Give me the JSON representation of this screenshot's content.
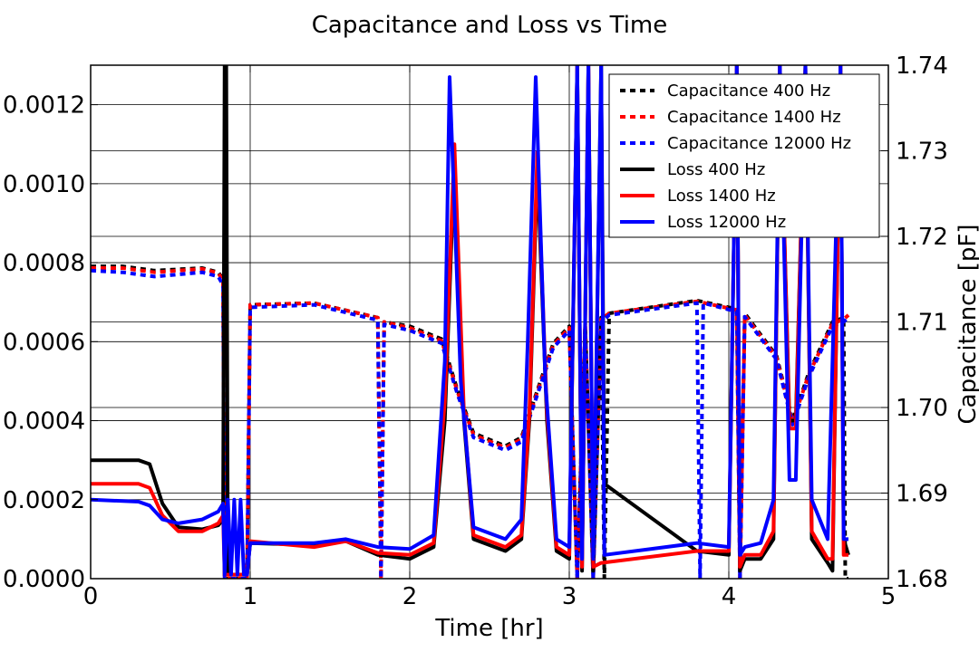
{
  "chart_data": {
    "type": "line",
    "title": "Capacitance and Loss vs Time",
    "xlabel": "Time [hr]",
    "ylabel_left": "",
    "ylabel_right": "Capacitance [pF]",
    "xlim": [
      0,
      5
    ],
    "ylim_left": [
      0,
      0.0013
    ],
    "ylim_right": [
      1.68,
      1.74
    ],
    "xticks": [
      "0",
      "1",
      "2",
      "3",
      "4",
      "5"
    ],
    "yticks_left": [
      "0.0000",
      "0.0002",
      "0.0004",
      "0.0006",
      "0.0008",
      "0.0010",
      "0.0012"
    ],
    "yticks_right": [
      "1.68",
      "1.69",
      "1.70",
      "1.71",
      "1.72",
      "1.73",
      "1.74"
    ],
    "grid": true,
    "legend_position": "top-right",
    "series": [
      {
        "name": "Capacitance 400 Hz",
        "axis": "right",
        "style": "dashed",
        "color": "#000000",
        "points": [
          [
            0,
            1.7165
          ],
          [
            0.2,
            1.7165
          ],
          [
            0.4,
            1.716
          ],
          [
            0.7,
            1.7163
          ],
          [
            0.8,
            1.7158
          ],
          [
            0.83,
            1.715
          ],
          [
            0.84,
            1.68
          ],
          [
            0.98,
            1.68
          ],
          [
            1.0,
            1.712
          ],
          [
            1.4,
            1.7122
          ],
          [
            1.8,
            1.7105
          ],
          [
            1.82,
            1.68
          ],
          [
            1.84,
            1.71
          ],
          [
            2.0,
            1.7095
          ],
          [
            2.2,
            1.708
          ],
          [
            2.3,
            1.702
          ],
          [
            2.4,
            1.697
          ],
          [
            2.6,
            1.6955
          ],
          [
            2.7,
            1.6965
          ],
          [
            2.8,
            1.702
          ],
          [
            2.9,
            1.7075
          ],
          [
            3.0,
            1.7095
          ],
          [
            3.05,
            1.68
          ],
          [
            3.1,
            1.71
          ],
          [
            3.15,
            1.68
          ],
          [
            3.2,
            1.7105
          ],
          [
            3.22,
            1.68
          ],
          [
            3.25,
            1.711
          ],
          [
            3.8,
            1.7125
          ],
          [
            4.05,
            1.7115
          ],
          [
            4.07,
            1.68
          ],
          [
            4.1,
            1.711
          ],
          [
            4.3,
            1.706
          ],
          [
            4.4,
            1.6985
          ],
          [
            4.5,
            1.704
          ],
          [
            4.65,
            1.71
          ],
          [
            4.72,
            1.7105
          ],
          [
            4.73,
            1.68
          ],
          [
            4.75,
            1.68
          ]
        ]
      },
      {
        "name": "Capacitance 1400 Hz",
        "axis": "right",
        "style": "dashed",
        "color": "#ff0000",
        "points": [
          [
            0,
            1.7163
          ],
          [
            0.2,
            1.7163
          ],
          [
            0.4,
            1.7158
          ],
          [
            0.7,
            1.7162
          ],
          [
            0.8,
            1.7157
          ],
          [
            0.83,
            1.7148
          ],
          [
            0.84,
            1.68
          ],
          [
            0.98,
            1.68
          ],
          [
            1.0,
            1.712
          ],
          [
            1.4,
            1.7122
          ],
          [
            1.8,
            1.7105
          ],
          [
            1.82,
            1.68
          ],
          [
            1.84,
            1.71
          ],
          [
            2.0,
            1.7093
          ],
          [
            2.2,
            1.7078
          ],
          [
            2.3,
            1.7018
          ],
          [
            2.4,
            1.6968
          ],
          [
            2.6,
            1.6953
          ],
          [
            2.7,
            1.6963
          ],
          [
            2.8,
            1.7018
          ],
          [
            2.9,
            1.7073
          ],
          [
            3.0,
            1.7093
          ],
          [
            3.05,
            1.68
          ],
          [
            3.1,
            1.7098
          ],
          [
            3.15,
            1.68
          ],
          [
            3.2,
            1.7103
          ],
          [
            3.25,
            1.711
          ],
          [
            3.8,
            1.7124
          ],
          [
            4.05,
            1.7114
          ],
          [
            4.07,
            1.68
          ],
          [
            4.1,
            1.7108
          ],
          [
            4.3,
            1.7058
          ],
          [
            4.4,
            1.6983
          ],
          [
            4.5,
            1.7038
          ],
          [
            4.65,
            1.7098
          ],
          [
            4.72,
            1.7103
          ],
          [
            4.75,
            1.7108
          ]
        ]
      },
      {
        "name": "Capacitance 12000 Hz",
        "axis": "right",
        "style": "dashed",
        "color": "#0000ff",
        "points": [
          [
            0,
            1.716
          ],
          [
            0.2,
            1.7158
          ],
          [
            0.4,
            1.7153
          ],
          [
            0.7,
            1.7158
          ],
          [
            0.8,
            1.7153
          ],
          [
            0.83,
            1.7143
          ],
          [
            0.84,
            1.68
          ],
          [
            0.98,
            1.68
          ],
          [
            1.0,
            1.7117
          ],
          [
            1.4,
            1.712
          ],
          [
            1.8,
            1.7102
          ],
          [
            1.82,
            1.68
          ],
          [
            1.84,
            1.7097
          ],
          [
            2.0,
            1.709
          ],
          [
            2.2,
            1.7075
          ],
          [
            2.3,
            1.7015
          ],
          [
            2.4,
            1.6965
          ],
          [
            2.6,
            1.695
          ],
          [
            2.7,
            1.696
          ],
          [
            2.8,
            1.7015
          ],
          [
            2.9,
            1.707
          ],
          [
            3.0,
            1.709
          ],
          [
            3.05,
            1.68
          ],
          [
            3.1,
            1.7095
          ],
          [
            3.15,
            1.68
          ],
          [
            3.2,
            1.71
          ],
          [
            3.25,
            1.7108
          ],
          [
            3.8,
            1.7122
          ],
          [
            3.82,
            1.68
          ],
          [
            3.84,
            1.7122
          ],
          [
            4.05,
            1.7112
          ],
          [
            4.07,
            1.68
          ],
          [
            4.1,
            1.7106
          ],
          [
            4.3,
            1.7056
          ],
          [
            4.4,
            1.698
          ],
          [
            4.5,
            1.7035
          ],
          [
            4.65,
            1.7095
          ],
          [
            4.72,
            1.71
          ],
          [
            4.75,
            1.7106
          ]
        ]
      },
      {
        "name": "Loss 400 Hz",
        "axis": "left",
        "style": "solid",
        "color": "#000000",
        "points": [
          [
            0,
            0.0003
          ],
          [
            0.3,
            0.0003
          ],
          [
            0.37,
            0.00029
          ],
          [
            0.45,
            0.00019
          ],
          [
            0.55,
            0.00013
          ],
          [
            0.7,
            0.000125
          ],
          [
            0.8,
            0.000135
          ],
          [
            0.83,
            0.00015
          ],
          [
            0.84,
            0.0013
          ],
          [
            0.85,
            0.0013
          ],
          [
            0.86,
            1e-05
          ],
          [
            0.98,
            1e-05
          ],
          [
            1.0,
            9e-05
          ],
          [
            1.4,
            8.5e-05
          ],
          [
            1.6,
            9.5e-05
          ],
          [
            1.8,
            6e-05
          ],
          [
            2.0,
            5e-05
          ],
          [
            2.15,
            8e-05
          ],
          [
            2.22,
            0.0004
          ],
          [
            2.28,
            0.00106
          ],
          [
            2.34,
            0.0004
          ],
          [
            2.4,
            0.0001
          ],
          [
            2.6,
            7e-05
          ],
          [
            2.7,
            0.0001
          ],
          [
            2.75,
            0.0004
          ],
          [
            2.8,
            0.00104
          ],
          [
            2.86,
            0.0004
          ],
          [
            2.92,
            7e-05
          ],
          [
            3.0,
            5e-05
          ],
          [
            3.05,
            0.0013
          ],
          [
            3.08,
            2e-05
          ],
          [
            3.12,
            0.0013
          ],
          [
            3.15,
            2e-05
          ],
          [
            3.2,
            0.0013
          ],
          [
            3.22,
            0.00024
          ],
          [
            3.8,
            7e-05
          ],
          [
            4.0,
            6e-05
          ],
          [
            4.05,
            0.0013
          ],
          [
            4.07,
            2e-05
          ],
          [
            4.1,
            5e-05
          ],
          [
            4.2,
            5e-05
          ],
          [
            4.28,
            0.0001
          ],
          [
            4.32,
            0.0013
          ],
          [
            4.38,
            0.0004
          ],
          [
            4.42,
            0.0004
          ],
          [
            4.48,
            0.0013
          ],
          [
            4.52,
            0.0001
          ],
          [
            4.62,
            4e-05
          ],
          [
            4.65,
            2e-05
          ],
          [
            4.7,
            0.0013
          ],
          [
            4.72,
            0.0001
          ],
          [
            4.75,
            6e-05
          ]
        ]
      },
      {
        "name": "Loss 1400 Hz",
        "axis": "left",
        "style": "solid",
        "color": "#ff0000",
        "points": [
          [
            0,
            0.00024
          ],
          [
            0.3,
            0.00024
          ],
          [
            0.37,
            0.00023
          ],
          [
            0.45,
            0.00016
          ],
          [
            0.55,
            0.00012
          ],
          [
            0.7,
            0.00012
          ],
          [
            0.8,
            0.00014
          ],
          [
            0.83,
            0.00016
          ],
          [
            0.84,
            1e-05
          ],
          [
            0.98,
            1e-05
          ],
          [
            1.0,
            9.5e-05
          ],
          [
            1.4,
            8e-05
          ],
          [
            1.6,
            9.5e-05
          ],
          [
            1.8,
            6.5e-05
          ],
          [
            2.0,
            6e-05
          ],
          [
            2.15,
            9e-05
          ],
          [
            2.22,
            0.00045
          ],
          [
            2.28,
            0.0011
          ],
          [
            2.34,
            0.00042
          ],
          [
            2.4,
            0.00011
          ],
          [
            2.6,
            8e-05
          ],
          [
            2.7,
            0.00011
          ],
          [
            2.75,
            0.00042
          ],
          [
            2.8,
            0.00108
          ],
          [
            2.86,
            0.00042
          ],
          [
            2.92,
            8e-05
          ],
          [
            3.0,
            6e-05
          ],
          [
            3.05,
            0.0013
          ],
          [
            3.08,
            3e-05
          ],
          [
            3.12,
            0.0013
          ],
          [
            3.15,
            3e-05
          ],
          [
            3.2,
            4e-05
          ],
          [
            3.8,
            7e-05
          ],
          [
            4.0,
            7e-05
          ],
          [
            4.05,
            0.0013
          ],
          [
            4.07,
            3e-05
          ],
          [
            4.1,
            6e-05
          ],
          [
            4.2,
            6e-05
          ],
          [
            4.28,
            0.00012
          ],
          [
            4.32,
            0.0013
          ],
          [
            4.38,
            0.00038
          ],
          [
            4.42,
            0.00038
          ],
          [
            4.48,
            0.0013
          ],
          [
            4.52,
            0.00012
          ],
          [
            4.62,
            5e-05
          ],
          [
            4.65,
            5e-05
          ],
          [
            4.7,
            0.0013
          ],
          [
            4.72,
            6e-05
          ],
          [
            4.75,
            6e-05
          ]
        ]
      },
      {
        "name": "Loss 12000 Hz",
        "axis": "left",
        "style": "solid",
        "color": "#0000ff",
        "points": [
          [
            0,
            0.0002
          ],
          [
            0.3,
            0.000195
          ],
          [
            0.37,
            0.000185
          ],
          [
            0.45,
            0.00015
          ],
          [
            0.55,
            0.00014
          ],
          [
            0.7,
            0.00015
          ],
          [
            0.8,
            0.00017
          ],
          [
            0.83,
            0.00019
          ],
          [
            0.84,
            1e-05
          ],
          [
            0.86,
            0.0002
          ],
          [
            0.88,
            1e-05
          ],
          [
            0.9,
            0.0002
          ],
          [
            0.92,
            1e-05
          ],
          [
            0.94,
            0.0002
          ],
          [
            0.96,
            1e-05
          ],
          [
            0.98,
            1e-05
          ],
          [
            1.0,
            9e-05
          ],
          [
            1.4,
            9e-05
          ],
          [
            1.6,
            0.0001
          ],
          [
            1.8,
            8e-05
          ],
          [
            2.0,
            7.5e-05
          ],
          [
            2.15,
            0.00011
          ],
          [
            2.22,
            0.00055
          ],
          [
            2.25,
            0.00127
          ],
          [
            2.32,
            0.0005
          ],
          [
            2.4,
            0.00013
          ],
          [
            2.6,
            0.0001
          ],
          [
            2.7,
            0.00015
          ],
          [
            2.74,
            0.0006
          ],
          [
            2.79,
            0.00127
          ],
          [
            2.85,
            0.0005
          ],
          [
            2.92,
            0.0001
          ],
          [
            3.0,
            8e-05
          ],
          [
            3.05,
            0.0013
          ],
          [
            3.08,
            5e-05
          ],
          [
            3.12,
            0.0013
          ],
          [
            3.15,
            5e-05
          ],
          [
            3.2,
            0.0013
          ],
          [
            3.22,
            6e-05
          ],
          [
            3.8,
            9e-05
          ],
          [
            4.0,
            8e-05
          ],
          [
            4.05,
            0.0013
          ],
          [
            4.07,
            6e-05
          ],
          [
            4.1,
            8e-05
          ],
          [
            4.2,
            9e-05
          ],
          [
            4.28,
            0.0002
          ],
          [
            4.32,
            0.0013
          ],
          [
            4.38,
            0.00025
          ],
          [
            4.42,
            0.00025
          ],
          [
            4.48,
            0.0013
          ],
          [
            4.52,
            0.0002
          ],
          [
            4.62,
            0.0001
          ],
          [
            4.7,
            0.0013
          ],
          [
            4.72,
            0.0001
          ],
          [
            4.75,
            0.0001
          ]
        ]
      }
    ]
  }
}
